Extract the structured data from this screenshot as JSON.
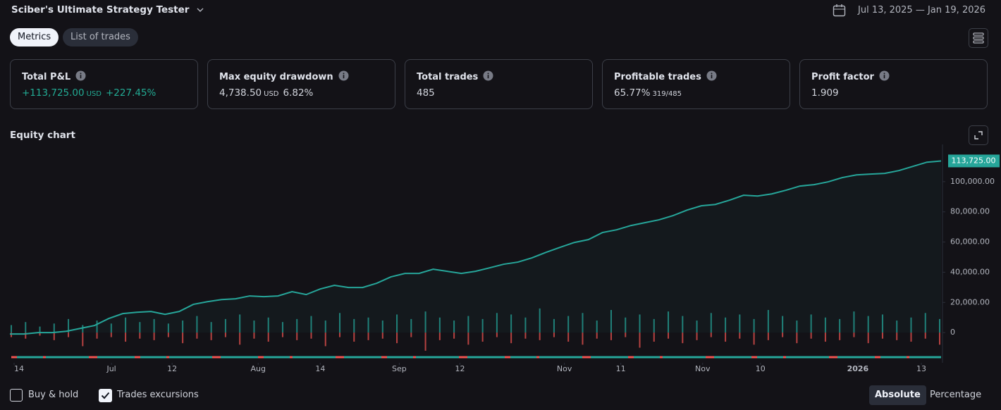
{
  "header": {
    "title": "Sciber's Ultimate Strategy Tester",
    "date_range": "Jul 13, 2025 — Jan 19, 2026"
  },
  "tabs": [
    "Metrics",
    "List of trades"
  ],
  "metrics": [
    {
      "label": "Total P&L",
      "value": "+113,725.00",
      "unit": "USD",
      "extra": "+227.45%",
      "color": "#22ab94"
    },
    {
      "label": "Max equity drawdown",
      "value": "4,738.50",
      "unit": "USD",
      "extra": "6.82%"
    },
    {
      "label": "Total trades",
      "value": "485"
    },
    {
      "label": "Profitable trades",
      "value": "65.77%",
      "extra": "319/485"
    },
    {
      "label": "Profit factor",
      "value": "1.909"
    }
  ],
  "chart_data": {
    "type": "line",
    "title": "Equity chart",
    "series": [
      {
        "color": "#26a69a",
        "last_value_label": "113,725.00",
        "values": [
          -900,
          -900,
          0,
          0,
          900,
          2800,
          4700,
          9300,
          12600,
          13500,
          14000,
          12100,
          14000,
          18700,
          20500,
          21900,
          22400,
          24300,
          23800,
          24300,
          27100,
          25200,
          28900,
          31300,
          29900,
          29900,
          32700,
          36900,
          39200,
          39200,
          42000,
          40600,
          39200,
          40600,
          42900,
          45300,
          46700,
          49500,
          53200,
          56500,
          59700,
          61600,
          66300,
          68100,
          70900,
          72800,
          74700,
          77500,
          81200,
          84000,
          84900,
          87700,
          91000,
          90500,
          91900,
          94300,
          97100,
          98000,
          99900,
          102700,
          104500,
          105000,
          105500,
          107300,
          110100,
          112900,
          113725
        ]
      }
    ],
    "excursions": {
      "up": {
        "color": "#26a69a",
        "values": [
          5000,
          7000,
          4000,
          6000,
          9000,
          5000,
          8000,
          6000,
          10000,
          7000,
          9000,
          6000,
          8000,
          11000,
          7000,
          9000,
          12000,
          8000,
          10000,
          7000,
          9000,
          11000,
          8000,
          13000,
          9000,
          10000,
          8000,
          12000,
          9000,
          14000,
          10000,
          8000,
          11000,
          9000,
          13000,
          12000,
          10000,
          16000,
          9000,
          11000,
          13000,
          8000,
          15000,
          10000,
          12000,
          9000,
          14000,
          11000,
          8000,
          13000,
          10000,
          12000,
          9000,
          15000,
          11000,
          8000,
          12000,
          10000,
          9000,
          14000,
          11000,
          12000,
          8000,
          10000,
          13000,
          9000
        ]
      },
      "down": {
        "color": "#ef5350",
        "values": [
          -3000,
          -4000,
          -2000,
          -5000,
          -3000,
          -9000,
          -4000,
          -3000,
          -6000,
          -4000,
          -5000,
          -3000,
          -7000,
          -4000,
          -5000,
          -3000,
          -8000,
          -4000,
          -6000,
          -3000,
          -5000,
          -4000,
          -9000,
          -3000,
          -6000,
          -5000,
          -4000,
          -7000,
          -3000,
          -12000,
          -5000,
          -4000,
          -8000,
          -6000,
          -3000,
          -7000,
          -4000,
          -5000,
          -3000,
          -6000,
          -8000,
          -4000,
          -5000,
          -3000,
          -10000,
          -6000,
          -4000,
          -7000,
          -5000,
          -3000,
          -6000,
          -4000,
          -8000,
          -5000,
          -3000,
          -7000,
          -4000,
          -6000,
          -5000,
          -3000,
          -7000,
          -4000,
          -5000,
          -6000,
          -4000,
          -8000
        ]
      }
    },
    "xlim": [
      0,
      66
    ],
    "xticks": [
      {
        "value": 0.3,
        "label": "14"
      },
      {
        "value": 7.2,
        "label": "Jul"
      },
      {
        "value": 11.5,
        "label": "12"
      },
      {
        "value": 17.6,
        "label": "Aug"
      },
      {
        "value": 22,
        "label": "14"
      },
      {
        "value": 27.6,
        "label": "Sep"
      },
      {
        "value": 31.9,
        "label": "12"
      },
      {
        "value": 39.3,
        "label": "Nov"
      },
      {
        "value": 43.3,
        "label": "11"
      },
      {
        "value": 49.1,
        "label": "Nov"
      },
      {
        "value": 53.2,
        "label": "10"
      },
      {
        "value": 60.1,
        "label": "2026"
      },
      {
        "value": 64.6,
        "label": "13"
      }
    ],
    "ylim": [
      -20000,
      120000
    ],
    "yticks": [
      0,
      {
        "value": 20000,
        "label": "20,000.00"
      },
      {
        "value": 40000,
        "label": "40,000.00"
      },
      {
        "value": 60000,
        "label": "60,000.00"
      },
      {
        "value": 80000,
        "label": "80,000.00"
      },
      {
        "value": 100000,
        "label": "100,000.00"
      }
    ]
  },
  "footer": {
    "checkboxes": [
      {
        "label": "Buy & hold",
        "checked": false
      },
      {
        "label": "Trades excursions",
        "checked": true
      }
    ],
    "toggles": [
      "Absolute",
      "Percentage"
    ]
  }
}
